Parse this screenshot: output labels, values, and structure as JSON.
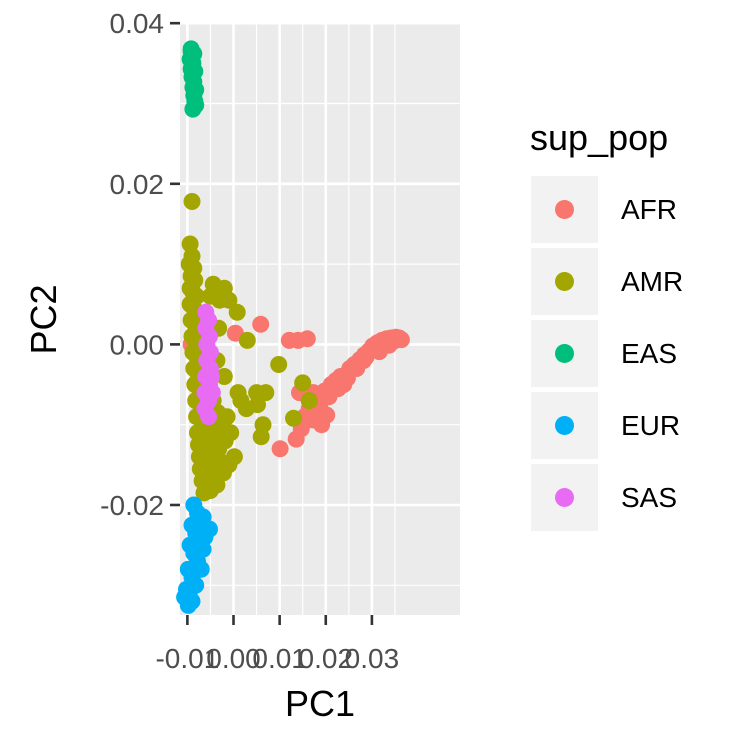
{
  "chart_data": {
    "type": "scatter",
    "title": "",
    "xlabel": "PC1",
    "ylabel": "PC2",
    "xlim": [
      -0.0116,
      0.0491
    ],
    "ylim": [
      -0.0337,
      0.0399
    ],
    "x_ticks": [
      {
        "value": -0.01,
        "label": "-0.01"
      },
      {
        "value": 0.0,
        "label": "0.00"
      },
      {
        "value": 0.01,
        "label": "0.01"
      },
      {
        "value": 0.02,
        "label": "0.02"
      },
      {
        "value": 0.03,
        "label": "0.03"
      }
    ],
    "y_ticks": [
      {
        "value": -0.02,
        "label": "-0.02"
      },
      {
        "value": 0.0,
        "label": "0.00"
      },
      {
        "value": 0.02,
        "label": "0.02"
      },
      {
        "value": 0.04,
        "label": "0.04"
      }
    ],
    "grid": true,
    "panel_background": "#EBEBEB",
    "legend": {
      "title": "sup_pop",
      "placement": "right"
    },
    "series": [
      {
        "name": "AFR",
        "color": "#F8766D",
        "points": [
          [
            -0.0092,
            0.0
          ],
          [
            0.0004,
            0.0014
          ],
          [
            0.0059,
            0.0025
          ],
          [
            0.0121,
            0.0005
          ],
          [
            0.014,
            0.0005
          ],
          [
            0.016,
            0.0007
          ],
          [
            0.0191,
            -0.01
          ],
          [
            0.0143,
            -0.006
          ],
          [
            0.0173,
            -0.006
          ],
          [
            0.0154,
            -0.009
          ],
          [
            0.0164,
            -0.008
          ],
          [
            0.0178,
            -0.0072
          ],
          [
            0.0188,
            -0.0065
          ],
          [
            0.0198,
            -0.0058
          ],
          [
            0.0212,
            -0.005
          ],
          [
            0.0222,
            -0.0045
          ],
          [
            0.0232,
            -0.004
          ],
          [
            0.0244,
            -0.0038
          ],
          [
            0.0252,
            -0.003
          ],
          [
            0.0262,
            -0.0025
          ],
          [
            0.0274,
            -0.0019
          ],
          [
            0.0284,
            -0.0013
          ],
          [
            0.0294,
            -0.0008
          ],
          [
            0.0302,
            -0.0002
          ],
          [
            0.0312,
            0.0002
          ],
          [
            0.0322,
            0.0005
          ],
          [
            0.0332,
            0.0007
          ],
          [
            0.0342,
            0.0008
          ],
          [
            0.0352,
            0.0009
          ],
          [
            0.0359,
            0.0008
          ],
          [
            0.0364,
            0.0006
          ],
          [
            0.0347,
            0.0004
          ],
          [
            0.0327,
            0.0
          ],
          [
            0.0307,
            -0.0006
          ],
          [
            0.0287,
            -0.0016
          ],
          [
            0.0267,
            -0.003
          ],
          [
            0.0247,
            -0.0042
          ],
          [
            0.0227,
            -0.0055
          ],
          [
            0.0207,
            -0.0065
          ],
          [
            0.0187,
            -0.0075
          ],
          [
            0.0167,
            -0.0085
          ],
          [
            0.0147,
            -0.0105
          ],
          [
            0.0136,
            -0.0118
          ],
          [
            0.0202,
            -0.0088
          ],
          [
            0.0172,
            -0.0094
          ],
          [
            0.0282,
            -0.002
          ],
          [
            0.0239,
            -0.005
          ],
          [
            0.0316,
            -0.0009
          ],
          [
            0.0337,
            -0.0001
          ],
          [
            0.0101,
            -0.013
          ]
        ]
      },
      {
        "name": "AMR",
        "color": "#A3A500",
        "points": [
          [
            -0.0094,
            0.0125
          ],
          [
            -0.009,
            0.011
          ],
          [
            -0.0096,
            0.01
          ],
          [
            -0.0086,
            0.0095
          ],
          [
            -0.0092,
            0.0085
          ],
          [
            -0.0084,
            0.008
          ],
          [
            -0.0094,
            0.007
          ],
          [
            -0.0088,
            0.0065
          ],
          [
            -0.008,
            0.006
          ],
          [
            -0.0094,
            0.005
          ],
          [
            -0.0086,
            0.0045
          ],
          [
            -0.0078,
            0.004
          ],
          [
            -0.0092,
            0.003
          ],
          [
            -0.0084,
            0.0025
          ],
          [
            -0.0076,
            0.002
          ],
          [
            -0.009,
            0.001
          ],
          [
            -0.0082,
            0.0005
          ],
          [
            -0.0072,
            0.0
          ],
          [
            -0.0088,
            -0.001
          ],
          [
            -0.008,
            -0.0015
          ],
          [
            -0.007,
            -0.002
          ],
          [
            -0.0086,
            -0.003
          ],
          [
            -0.0078,
            -0.0035
          ],
          [
            -0.0068,
            -0.004
          ],
          [
            -0.0084,
            -0.005
          ],
          [
            -0.0074,
            -0.0055
          ],
          [
            -0.0064,
            -0.006
          ],
          [
            -0.0082,
            -0.007
          ],
          [
            -0.0072,
            -0.0075
          ],
          [
            -0.006,
            -0.008
          ],
          [
            -0.008,
            -0.009
          ],
          [
            -0.0068,
            -0.0095
          ],
          [
            -0.0056,
            -0.01
          ],
          [
            -0.0078,
            -0.011
          ],
          [
            -0.0064,
            -0.0115
          ],
          [
            -0.005,
            -0.011
          ],
          [
            -0.0076,
            -0.0125
          ],
          [
            -0.0062,
            -0.013
          ],
          [
            -0.0048,
            -0.012
          ],
          [
            -0.0036,
            -0.0115
          ],
          [
            -0.0074,
            -0.014
          ],
          [
            -0.006,
            -0.0145
          ],
          [
            -0.0046,
            -0.014
          ],
          [
            -0.0032,
            -0.013
          ],
          [
            -0.0072,
            -0.0155
          ],
          [
            -0.0058,
            -0.016
          ],
          [
            -0.0044,
            -0.0155
          ],
          [
            -0.003,
            -0.0145
          ],
          [
            -0.0068,
            -0.017
          ],
          [
            -0.0054,
            -0.0172
          ],
          [
            -0.004,
            -0.0165
          ],
          [
            -0.0064,
            -0.0185
          ],
          [
            -0.005,
            -0.0182
          ],
          [
            -0.0036,
            -0.0175
          ],
          [
            -0.0022,
            -0.016
          ],
          [
            -0.001,
            -0.015
          ],
          [
            0.0002,
            -0.014
          ],
          [
            -0.0018,
            -0.012
          ],
          [
            -0.0006,
            -0.011
          ],
          [
            -0.0026,
            -0.01
          ],
          [
            -0.0014,
            -0.009
          ],
          [
            -0.0034,
            -0.0085
          ],
          [
            -0.0044,
            -0.007
          ],
          [
            -0.0054,
            -0.005
          ],
          [
            -0.0062,
            -0.003
          ],
          [
            -0.0066,
            -0.001
          ],
          [
            -0.006,
            0.003
          ],
          [
            -0.005,
            0.006
          ],
          [
            -0.0044,
            0.0075
          ],
          [
            -0.003,
            0.0055
          ],
          [
            -0.0032,
            0.002
          ],
          [
            -0.0036,
            -0.002
          ],
          [
            -0.002,
            -0.004
          ],
          [
            0.001,
            -0.006
          ],
          [
            0.0016,
            -0.007
          ],
          [
            0.0028,
            -0.008
          ],
          [
            0.005,
            -0.006
          ],
          [
            0.007,
            -0.006
          ],
          [
            0.0052,
            -0.0075
          ],
          [
            0.0064,
            -0.01
          ],
          [
            0.006,
            -0.0115
          ],
          [
            0.0098,
            -0.0025
          ],
          [
            0.015,
            -0.0048
          ],
          [
            0.013,
            -0.0092
          ],
          [
            0.0164,
            -0.007
          ],
          [
            -0.001,
            0.0055
          ],
          [
            -0.002,
            0.007
          ],
          [
            0.0008,
            0.004
          ],
          [
            0.003,
            0.0005
          ],
          [
            -0.009,
            0.0178
          ]
        ]
      },
      {
        "name": "EAS",
        "color": "#00BF7D",
        "points": [
          [
            -0.0092,
            0.0365
          ],
          [
            -0.0086,
            0.0362
          ],
          [
            -0.0094,
            0.0355
          ],
          [
            -0.0088,
            0.035
          ],
          [
            -0.0092,
            0.0343
          ],
          [
            -0.0084,
            0.034
          ],
          [
            -0.009,
            0.0333
          ],
          [
            -0.0086,
            0.0327
          ],
          [
            -0.0088,
            0.032
          ],
          [
            -0.0082,
            0.0317
          ],
          [
            -0.0086,
            0.031
          ],
          [
            -0.0084,
            0.0303
          ],
          [
            -0.0088,
            0.0293
          ],
          [
            -0.0082,
            0.0298
          ],
          [
            -0.0092,
            0.0368
          ]
        ]
      },
      {
        "name": "EUR",
        "color": "#00B0F6",
        "points": [
          [
            -0.0086,
            -0.02
          ],
          [
            -0.0078,
            -0.021
          ],
          [
            -0.007,
            -0.022
          ],
          [
            -0.006,
            -0.023
          ],
          [
            -0.009,
            -0.0225
          ],
          [
            -0.0082,
            -0.0235
          ],
          [
            -0.0074,
            -0.0245
          ],
          [
            -0.0066,
            -0.0255
          ],
          [
            -0.0094,
            -0.025
          ],
          [
            -0.0086,
            -0.026
          ],
          [
            -0.0078,
            -0.027
          ],
          [
            -0.007,
            -0.028
          ],
          [
            -0.0098,
            -0.028
          ],
          [
            -0.009,
            -0.029
          ],
          [
            -0.0082,
            -0.03
          ],
          [
            -0.0102,
            -0.0305
          ],
          [
            -0.0096,
            -0.0313
          ],
          [
            -0.009,
            -0.032
          ],
          [
            -0.0098,
            -0.0325
          ],
          [
            -0.0106,
            -0.0315
          ],
          [
            -0.0062,
            -0.024
          ],
          [
            -0.0052,
            -0.023
          ],
          [
            -0.0074,
            -0.023
          ],
          [
            -0.0066,
            -0.0215
          ]
        ]
      },
      {
        "name": "SAS",
        "color": "#E76BF3",
        "points": [
          [
            -0.006,
            0.004
          ],
          [
            -0.0054,
            0.003
          ],
          [
            -0.006,
            0.002
          ],
          [
            -0.0052,
            0.001
          ],
          [
            -0.0058,
            0.0
          ],
          [
            -0.005,
            -0.001
          ],
          [
            -0.0058,
            -0.002
          ],
          [
            -0.005,
            -0.003
          ],
          [
            -0.006,
            -0.004
          ],
          [
            -0.0052,
            -0.005
          ],
          [
            -0.0062,
            -0.006
          ],
          [
            -0.0054,
            -0.007
          ],
          [
            -0.0062,
            -0.008
          ],
          [
            -0.0054,
            -0.009
          ],
          [
            -0.0048,
            -0.004
          ],
          [
            -0.0046,
            -0.006
          ]
        ]
      }
    ]
  }
}
